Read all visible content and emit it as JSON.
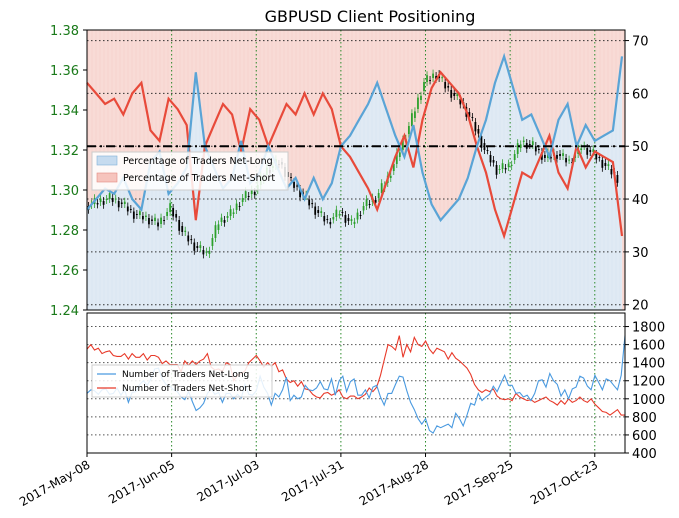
{
  "chart_data": [
    {
      "type": "area+candlestick",
      "title": "GBPUSD Client Positioning",
      "x_ticks": [
        "2017-May-08",
        "2017-Jun-05",
        "2017-Jul-03",
        "2017-Jul-31",
        "2017-Aug-28",
        "2017-Sep-25",
        "2017-Oct-23"
      ],
      "x_range_days": [
        0,
        178
      ],
      "price_axis": {
        "side": "left",
        "ticks": [
          "1.24",
          "1.26",
          "1.28",
          "1.30",
          "1.32",
          "1.34",
          "1.36",
          "1.38"
        ],
        "ylim": [
          1.24,
          1.38
        ],
        "color": "#1a7a1a"
      },
      "pct_axis": {
        "side": "right",
        "ticks": [
          "20",
          "30",
          "40",
          "50",
          "60",
          "70"
        ],
        "ylim": [
          19,
          72
        ]
      },
      "reference_line": 50,
      "legend": {
        "placement": "center-left",
        "entries": [
          "Percentage of Traders Net-Long",
          "Percentage of Traders Net-Short"
        ]
      },
      "colors": {
        "net_long": "#5aa4d6",
        "net_short": "#e84a3a",
        "long_fill": "#dde8f3",
        "short_fill": "#f7d7d2",
        "candle_up": "#2ca02c",
        "candle_down": "#000000"
      },
      "pct_net_long": {
        "day": [
          0,
          3,
          6,
          9,
          12,
          15,
          18,
          21,
          24,
          27,
          30,
          33,
          36,
          39,
          42,
          45,
          48,
          51,
          54,
          57,
          60,
          63,
          66,
          69,
          72,
          75,
          78,
          81,
          84,
          87,
          90,
          93,
          96,
          99,
          102,
          105,
          108,
          111,
          114,
          117,
          120,
          123,
          126,
          129,
          132,
          135,
          138,
          141,
          144,
          147,
          150,
          153,
          156,
          159,
          162,
          165,
          168,
          171,
          174,
          177
        ],
        "value": [
          38,
          40,
          42,
          41,
          44,
          40,
          38,
          47,
          49,
          41,
          43,
          46,
          64,
          50,
          46,
          42,
          44,
          51,
          43,
          45,
          50,
          46,
          42,
          44,
          40,
          44,
          40,
          43,
          50,
          52,
          55,
          58,
          62,
          57,
          52,
          48,
          54,
          45,
          39,
          36,
          38,
          40,
          44,
          50,
          55,
          62,
          67,
          61,
          55,
          56,
          52,
          48,
          55,
          58,
          50,
          54,
          51,
          52,
          53,
          67
        ],
        "short_is_complement": true
      },
      "price_daily_close": {
        "day": [
          0,
          4,
          8,
          12,
          16,
          20,
          24,
          28,
          32,
          36,
          40,
          44,
          48,
          52,
          56,
          60,
          64,
          68,
          72,
          76,
          80,
          84,
          88,
          92,
          96,
          100,
          104,
          108,
          112,
          116,
          120,
          124,
          128,
          132,
          136,
          140,
          144,
          148,
          152,
          156,
          160,
          164,
          168,
          172,
          176
        ],
        "close": [
          1.292,
          1.294,
          1.296,
          1.293,
          1.288,
          1.286,
          1.283,
          1.291,
          1.279,
          1.272,
          1.268,
          1.284,
          1.288,
          1.296,
          1.3,
          1.31,
          1.314,
          1.304,
          1.297,
          1.29,
          1.284,
          1.289,
          1.283,
          1.292,
          1.296,
          1.306,
          1.32,
          1.336,
          1.354,
          1.358,
          1.35,
          1.344,
          1.334,
          1.32,
          1.31,
          1.312,
          1.324,
          1.322,
          1.316,
          1.318,
          1.314,
          1.322,
          1.318,
          1.312,
          1.306
        ]
      }
    },
    {
      "type": "line",
      "y_axis": {
        "side": "right",
        "ticks": [
          "400",
          "600",
          "800",
          "1000",
          "1200",
          "1400",
          "1600",
          "1800"
        ],
        "ylim": [
          400,
          1950
        ]
      },
      "legend": {
        "placement": "center-left",
        "entries": [
          "Number of Traders Net-Long",
          "Number of Traders Net-Short"
        ]
      },
      "series": [
        {
          "name": "Number of Traders Net-Long",
          "color": "#4a9ae0",
          "values": [
            1060,
            1100,
            1090,
            1050,
            1100,
            1110,
            1050,
            1060,
            1120,
            1040,
            1100,
            960,
            1070,
            1080,
            1160,
            1200,
            1150,
            1220,
            1330,
            1340,
            1220,
            1160,
            1140,
            1100,
            1080,
            1020,
            990,
            1080,
            970,
            870,
            900,
            950,
            1060,
            1110,
            1050,
            1070,
            960,
            1060,
            1060,
            1000,
            1050,
            1010,
            1160,
            1050,
            1040,
            1090,
            1250,
            1130,
            1060,
            930,
            1060,
            1020,
            1100,
            1240,
            980,
            1040,
            1000,
            1020,
            1150,
            1100,
            1090,
            1120,
            1190,
            1110,
            1100,
            1220,
            1040,
            1200,
            1250,
            1080,
            1190,
            1220,
            1040,
            1040,
            1100,
            1010,
            1130,
            1150,
            1020,
            930,
            1060,
            1060,
            1160,
            1250,
            1240,
            1090,
            960,
            880,
            780,
            720,
            780,
            650,
            620,
            700,
            680,
            700,
            720,
            680,
            840,
            780,
            700,
            820,
            950,
            930,
            1060,
            980,
            1020,
            1050,
            1140,
            1080,
            1170,
            1260,
            1150,
            1150,
            1060,
            1070,
            1020,
            1040,
            980,
            1060,
            1200,
            1210,
            1130,
            1280,
            1200,
            1160,
            1030,
            1100,
            1000,
            1110,
            1130,
            1250,
            1230,
            1140,
            1100,
            1260,
            1180,
            1100,
            1220,
            1200,
            1150,
            1100,
            1260,
            1700
          ]
        },
        {
          "name": "Number of Traders Net-Short",
          "color": "#e83a2a",
          "values": [
            1550,
            1600,
            1540,
            1560,
            1500,
            1520,
            1530,
            1480,
            1470,
            1470,
            1500,
            1440,
            1500,
            1460,
            1460,
            1500,
            1430,
            1480,
            1480,
            1460,
            1390,
            1420,
            1380,
            1380,
            1380,
            1300,
            1420,
            1370,
            1420,
            1380,
            1420,
            1440,
            1500,
            1350,
            1320,
            1330,
            1300,
            1400,
            1380,
            1200,
            1260,
            1280,
            1310,
            1400,
            1440,
            1480,
            1420,
            1350,
            1400,
            1360,
            1400,
            1300,
            1320,
            1220,
            1180,
            1200,
            1140,
            1190,
            1110,
            1100,
            1050,
            1020,
            1010,
            1060,
            1070,
            1040,
            1060,
            1100,
            1020,
            1000,
            1030,
            1030,
            1000,
            1020,
            1050,
            1120,
            1080,
            1130,
            1260,
            1430,
            1600,
            1580,
            1540,
            1700,
            1460,
            1600,
            1520,
            1680,
            1600,
            1580,
            1640,
            1550,
            1500,
            1560,
            1540,
            1520,
            1440,
            1510,
            1450,
            1420,
            1380,
            1340,
            1270,
            1160,
            1100,
            1070,
            1100,
            1080,
            1110,
            1030,
            1000,
            990,
            1000,
            980,
            1060,
            1020,
            1000,
            980,
            990,
            960,
            980,
            1000,
            1020,
            980,
            960,
            930,
            980,
            940,
            1000,
            960,
            980,
            1020,
            980,
            960,
            1000,
            940,
            900,
            860,
            850,
            820,
            850,
            880,
            820,
            820
          ]
        }
      ]
    }
  ]
}
